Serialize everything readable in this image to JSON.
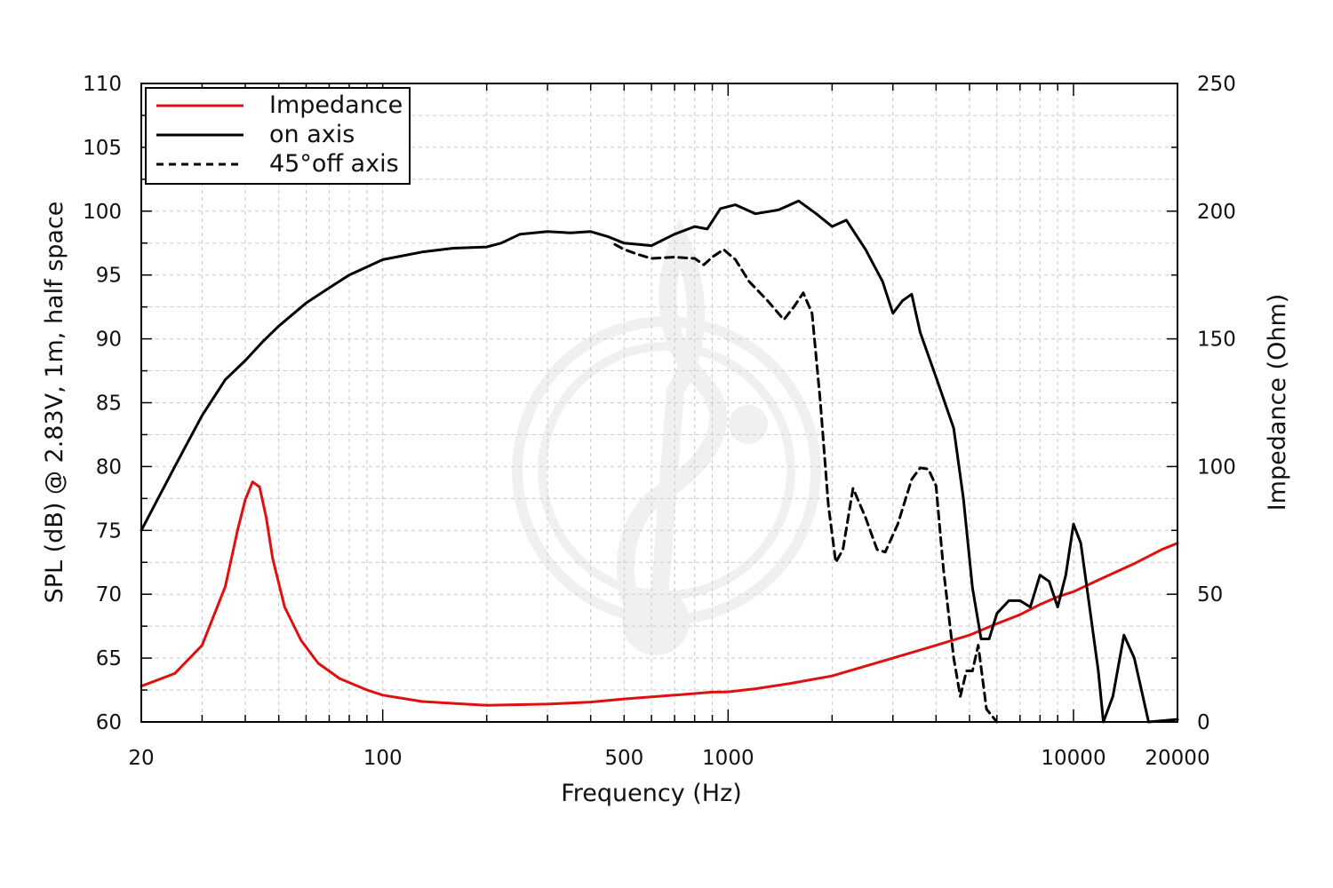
{
  "chart_data": {
    "type": "line",
    "xlabel": "Frequency (Hz)",
    "ylabel_left": "SPL (dB) @ 2.83V, 1m, half space",
    "ylabel_right": "Impedance (Ohm)",
    "x_scale": "log",
    "xlim": [
      20,
      20000
    ],
    "ylim_left": [
      60,
      110
    ],
    "ylim_right": [
      0,
      250
    ],
    "x_tick_labels": [
      "20",
      "100",
      "500",
      "1000",
      "10000",
      "20000"
    ],
    "y_left_tick_labels": [
      "60",
      "65",
      "70",
      "75",
      "80",
      "85",
      "90",
      "95",
      "100",
      "105",
      "110"
    ],
    "y_right_tick_labels": [
      "0",
      "50",
      "100",
      "150",
      "200",
      "250"
    ],
    "grid": true,
    "legend_position": "top-left",
    "series": [
      {
        "name": "Impedance",
        "axis": "right",
        "color": "#e01010",
        "style": "solid",
        "points": [
          [
            20,
            14
          ],
          [
            25,
            19
          ],
          [
            30,
            30
          ],
          [
            35,
            53
          ],
          [
            38,
            75
          ],
          [
            40,
            87
          ],
          [
            42,
            94
          ],
          [
            44,
            92
          ],
          [
            46,
            80
          ],
          [
            48,
            64
          ],
          [
            52,
            45
          ],
          [
            58,
            32
          ],
          [
            65,
            23
          ],
          [
            75,
            17
          ],
          [
            90,
            12.5
          ],
          [
            100,
            10.5
          ],
          [
            130,
            8
          ],
          [
            200,
            6.5
          ],
          [
            300,
            7
          ],
          [
            400,
            7.8
          ],
          [
            500,
            9
          ],
          [
            700,
            10.5
          ],
          [
            900,
            11.7
          ],
          [
            1000,
            11.8
          ],
          [
            1200,
            13
          ],
          [
            1500,
            15
          ],
          [
            2000,
            18
          ],
          [
            3000,
            25
          ],
          [
            4000,
            30
          ],
          [
            5000,
            34
          ],
          [
            6000,
            38.5
          ],
          [
            7000,
            42
          ],
          [
            8000,
            46
          ],
          [
            9000,
            49
          ],
          [
            10000,
            51
          ],
          [
            12000,
            56
          ],
          [
            15000,
            62
          ],
          [
            18000,
            67.5
          ],
          [
            20000,
            70
          ]
        ]
      },
      {
        "name": "on axis",
        "axis": "left",
        "color": "#000000",
        "style": "solid",
        "points": [
          [
            20,
            75
          ],
          [
            25,
            80
          ],
          [
            30,
            84
          ],
          [
            35,
            86.8
          ],
          [
            40,
            88.3
          ],
          [
            45,
            89.8
          ],
          [
            50,
            91
          ],
          [
            60,
            92.8
          ],
          [
            70,
            94
          ],
          [
            80,
            95
          ],
          [
            100,
            96.2
          ],
          [
            130,
            96.8
          ],
          [
            160,
            97.1
          ],
          [
            200,
            97.2
          ],
          [
            220,
            97.5
          ],
          [
            250,
            98.2
          ],
          [
            300,
            98.4
          ],
          [
            350,
            98.3
          ],
          [
            400,
            98.4
          ],
          [
            450,
            98
          ],
          [
            500,
            97.5
          ],
          [
            600,
            97.3
          ],
          [
            700,
            98.2
          ],
          [
            800,
            98.8
          ],
          [
            870,
            98.6
          ],
          [
            950,
            100.2
          ],
          [
            1050,
            100.5
          ],
          [
            1200,
            99.8
          ],
          [
            1400,
            100.1
          ],
          [
            1600,
            100.8
          ],
          [
            1800,
            99.8
          ],
          [
            2000,
            98.8
          ],
          [
            2200,
            99.3
          ],
          [
            2500,
            97
          ],
          [
            2800,
            94.5
          ],
          [
            3000,
            92
          ],
          [
            3200,
            93
          ],
          [
            3400,
            93.5
          ],
          [
            3600,
            90.5
          ],
          [
            4000,
            87
          ],
          [
            4500,
            83
          ],
          [
            4800,
            77.5
          ],
          [
            5100,
            70.5
          ],
          [
            5400,
            66.5
          ],
          [
            5700,
            66.5
          ],
          [
            6000,
            68.5
          ],
          [
            6500,
            69.5
          ],
          [
            7000,
            69.5
          ],
          [
            7500,
            69
          ],
          [
            8000,
            71.5
          ],
          [
            8500,
            71
          ],
          [
            9000,
            69
          ],
          [
            9500,
            71.5
          ],
          [
            10000,
            75.5
          ],
          [
            10500,
            74
          ],
          [
            11000,
            70
          ],
          [
            11800,
            64
          ],
          [
            12200,
            60
          ],
          [
            13000,
            62
          ],
          [
            14000,
            66.8
          ],
          [
            15000,
            65
          ],
          [
            16500,
            60
          ],
          [
            20000,
            60.2
          ]
        ]
      },
      {
        "name": "45°off axis",
        "axis": "left",
        "color": "#000000",
        "style": "dashed",
        "points": [
          [
            470,
            97.4
          ],
          [
            500,
            97
          ],
          [
            550,
            96.6
          ],
          [
            600,
            96.3
          ],
          [
            700,
            96.4
          ],
          [
            800,
            96.3
          ],
          [
            850,
            95.8
          ],
          [
            900,
            96.4
          ],
          [
            970,
            97
          ],
          [
            1050,
            96.2
          ],
          [
            1150,
            94.5
          ],
          [
            1300,
            93
          ],
          [
            1450,
            91.5
          ],
          [
            1550,
            92.5
          ],
          [
            1650,
            93.6
          ],
          [
            1750,
            92
          ],
          [
            1850,
            85
          ],
          [
            1950,
            77
          ],
          [
            2050,
            72.5
          ],
          [
            2150,
            73.5
          ],
          [
            2300,
            78.3
          ],
          [
            2500,
            76
          ],
          [
            2700,
            73.5
          ],
          [
            2850,
            73.3
          ],
          [
            3100,
            75.5
          ],
          [
            3400,
            79
          ],
          [
            3600,
            79.9
          ],
          [
            3800,
            79.8
          ],
          [
            4000,
            78.5
          ],
          [
            4200,
            72
          ],
          [
            4500,
            65
          ],
          [
            4700,
            62
          ],
          [
            4900,
            64
          ],
          [
            5100,
            64
          ],
          [
            5300,
            66
          ],
          [
            5600,
            61
          ],
          [
            6000,
            60
          ]
        ]
      }
    ]
  }
}
